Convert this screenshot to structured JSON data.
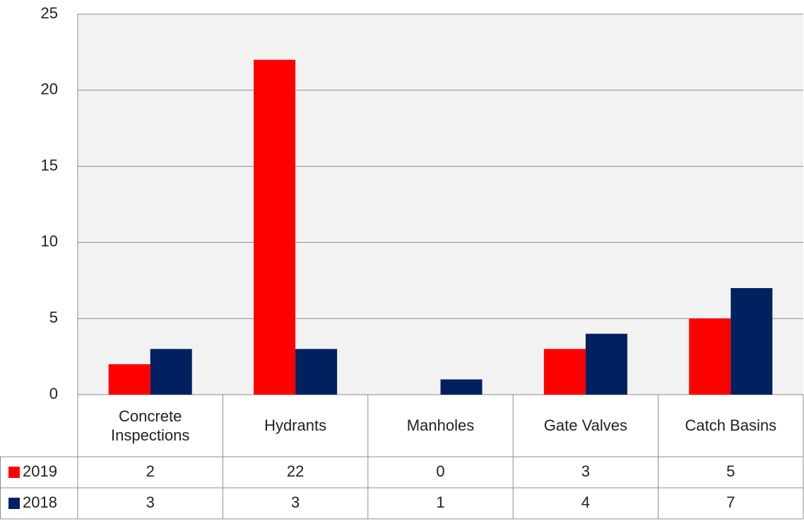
{
  "chart_data": {
    "type": "bar",
    "categories": [
      "Concrete Inspections",
      "Hydrants",
      "Manholes",
      "Gate Valves",
      "Catch Basins"
    ],
    "series": [
      {
        "name": "2019",
        "color": "#ff0000",
        "values": [
          2,
          22,
          0,
          3,
          5
        ]
      },
      {
        "name": "2018",
        "color": "#002060",
        "values": [
          3,
          3,
          1,
          4,
          7
        ]
      }
    ],
    "ylim": [
      0,
      25
    ],
    "yticks": [
      0,
      5,
      10,
      15,
      20,
      25
    ],
    "grid": true,
    "data_table": true
  }
}
